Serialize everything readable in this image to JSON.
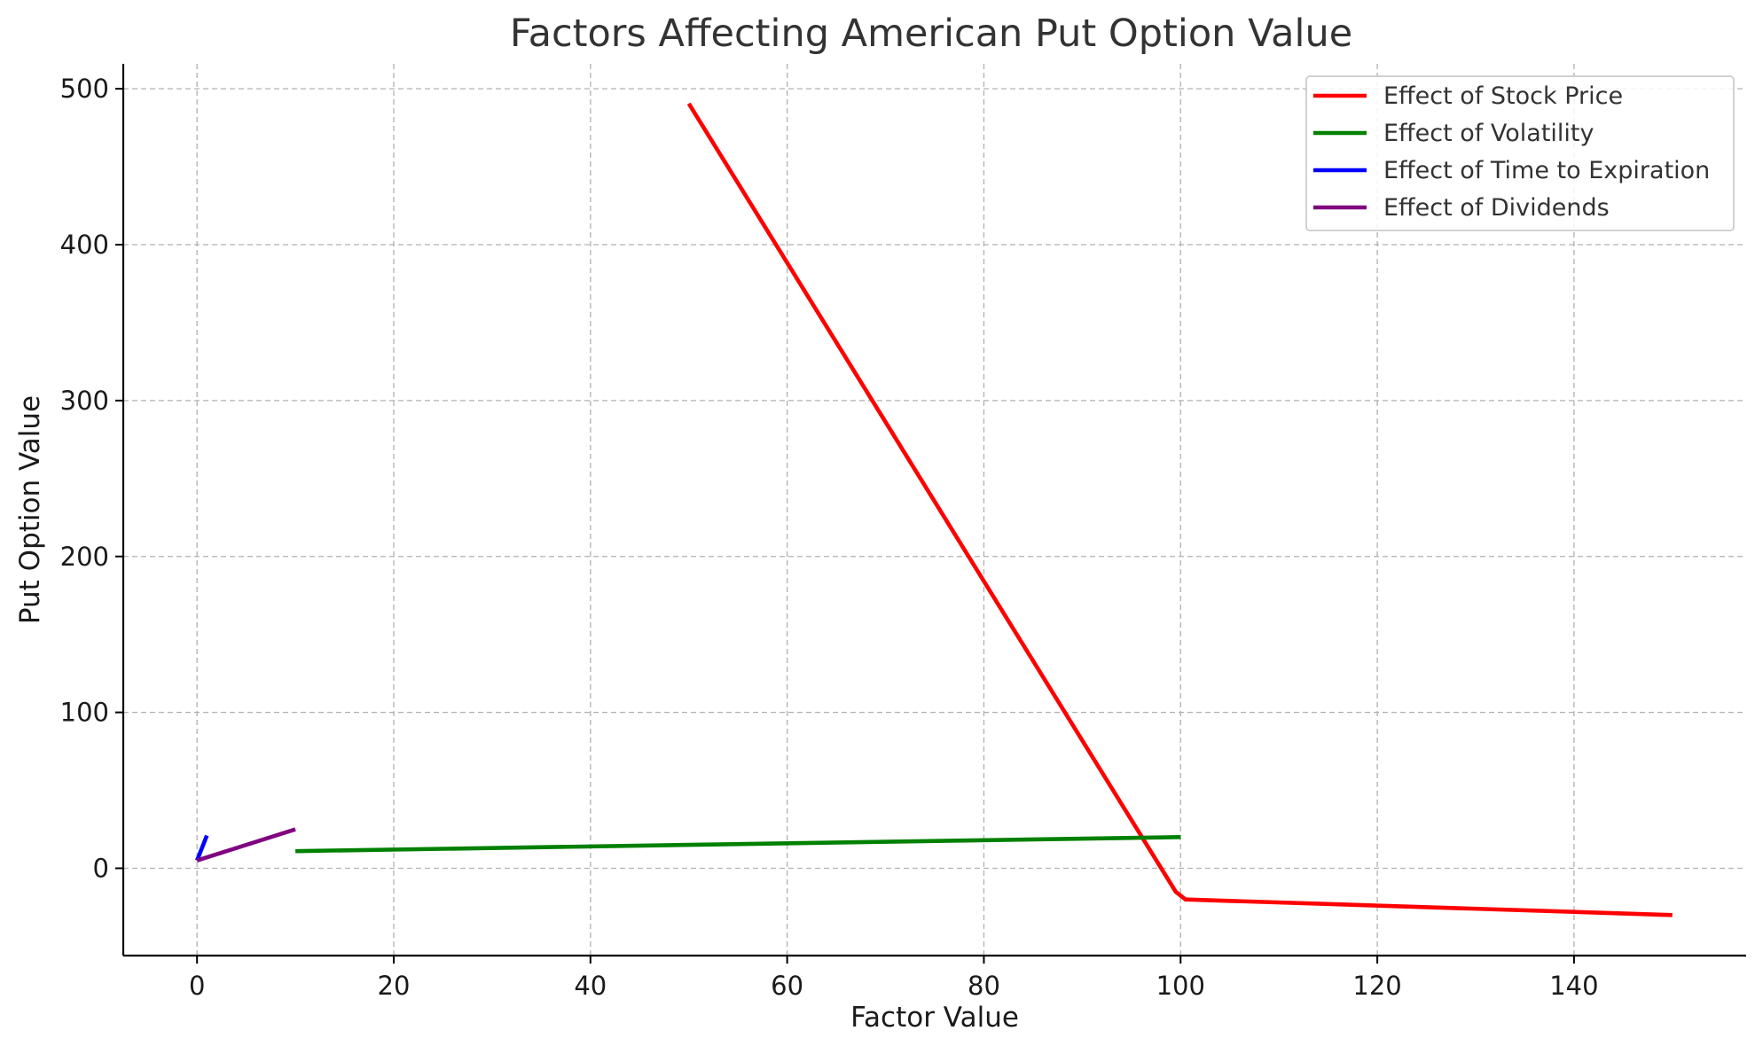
{
  "chart_data": {
    "type": "line",
    "title": "Factors Affecting American Put Option Value",
    "xlabel": "Factor Value",
    "ylabel": "Put Option Value",
    "xlim": [
      -7.5,
      157.5
    ],
    "ylim": [
      -56,
      516
    ],
    "xticks": [
      0,
      20,
      40,
      60,
      80,
      100,
      120,
      140
    ],
    "yticks": [
      0,
      100,
      200,
      300,
      400,
      500
    ],
    "grid": true,
    "legend_position": "top-right",
    "series": [
      {
        "name": "Effect of Stock Price",
        "color": "#ff0000",
        "x": [
          50,
          99.5,
          100.5,
          150
        ],
        "y": [
          490.5,
          -15,
          -20,
          -30
        ]
      },
      {
        "name": "Effect of Volatility",
        "color": "#008000",
        "x": [
          10,
          100
        ],
        "y": [
          11,
          20
        ]
      },
      {
        "name": "Effect of Time to Expiration",
        "color": "#0000ff",
        "x": [
          0,
          1
        ],
        "y": [
          5,
          21
        ]
      },
      {
        "name": "Effect of Dividends",
        "color": "#800080",
        "x": [
          0,
          10
        ],
        "y": [
          5,
          25
        ]
      }
    ]
  }
}
